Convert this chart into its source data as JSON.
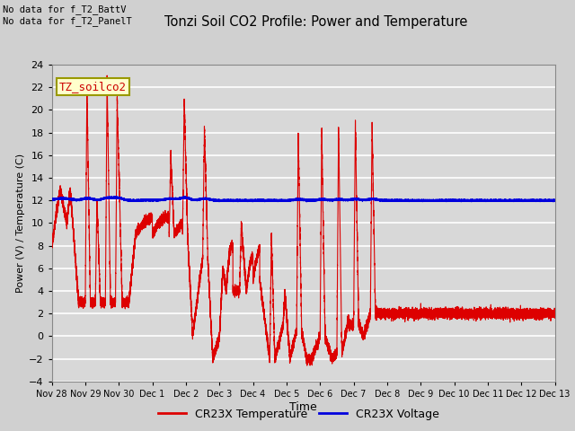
{
  "title": "Tonzi Soil CO2 Profile: Power and Temperature",
  "ylabel": "Power (V) / Temperature (C)",
  "xlabel": "Time",
  "annotation1": "No data for f_T2_BattV",
  "annotation2": "No data for f_T2_PanelT",
  "legend_label": "TZ_soilco2",
  "ylim": [
    -4,
    24
  ],
  "yticks": [
    -4,
    -2,
    0,
    2,
    4,
    6,
    8,
    10,
    12,
    14,
    16,
    18,
    20,
    22,
    24
  ],
  "bg_color": "#d0d0d0",
  "plot_bg_color": "#d8d8d8",
  "temp_color": "#dd0000",
  "volt_color": "#0000dd",
  "legend_items": [
    "CR23X Temperature",
    "CR23X Voltage"
  ],
  "x_tick_labels": [
    "Nov 28",
    "Nov 29",
    "Nov 30",
    "Dec 1",
    "Dec 2",
    "Dec 3",
    "Dec 4",
    "Dec 5",
    "Dec 6",
    "Dec 7",
    "Dec 8",
    "Dec 9",
    "Dec 10",
    "Dec 11",
    "Dec 12",
    "Dec 13"
  ],
  "num_days": 15
}
